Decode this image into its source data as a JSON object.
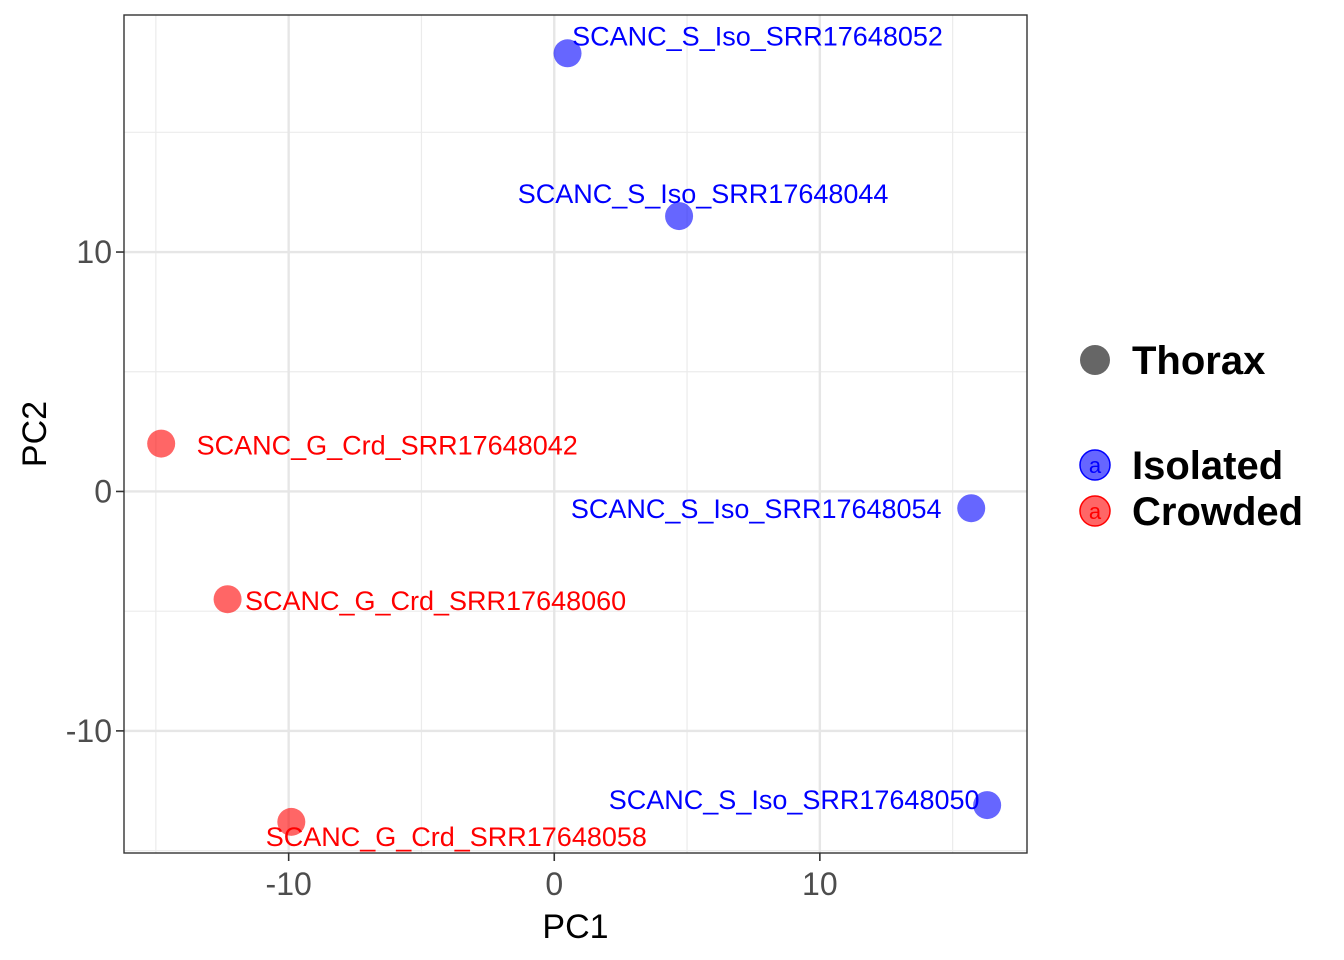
{
  "chart_data": {
    "type": "scatter",
    "title": "",
    "xlabel": "PC1",
    "ylabel": "PC2",
    "xlim": [
      -16.2,
      17.8
    ],
    "ylim": [
      -15.1,
      19.9
    ],
    "x_ticks": [
      -10,
      0,
      10
    ],
    "x_tick_labels": [
      "-10",
      "0",
      "10"
    ],
    "y_ticks": [
      -10,
      0,
      10
    ],
    "y_tick_labels": [
      "-10",
      "0",
      "10"
    ],
    "grid": true,
    "legend_position": "right",
    "legend": {
      "shape_entries": [
        {
          "label": "Thorax",
          "color": "#666666"
        }
      ],
      "color_entries": [
        {
          "label": "Isolated",
          "color": "#0000ff",
          "glyph": "a"
        },
        {
          "label": "Crowded",
          "color": "#ff0000",
          "glyph": "a"
        }
      ]
    },
    "series": [
      {
        "name": "Isolated",
        "color": "#0000ff",
        "points": [
          {
            "x": 0.5,
            "y": 18.3,
            "label": "SCANC_S_Iso_SRR17648052"
          },
          {
            "x": 4.7,
            "y": 11.5,
            "label": "SCANC_S_Iso_SRR17648044"
          },
          {
            "x": 15.7,
            "y": -0.7,
            "label": "SCANC_S_Iso_SRR17648054"
          },
          {
            "x": 16.3,
            "y": -13.1,
            "label": "SCANC_S_Iso_SRR17648050"
          }
        ]
      },
      {
        "name": "Crowded",
        "color": "#ff0000",
        "points": [
          {
            "x": -14.8,
            "y": 2.0,
            "label": "SCANC_G_Crd_SRR17648042"
          },
          {
            "x": -12.3,
            "y": -4.5,
            "label": "SCANC_G_Crd_SRR17648060"
          },
          {
            "x": -9.9,
            "y": -13.8,
            "label": "SCANC_G_Crd_SRR17648058"
          }
        ]
      }
    ]
  }
}
